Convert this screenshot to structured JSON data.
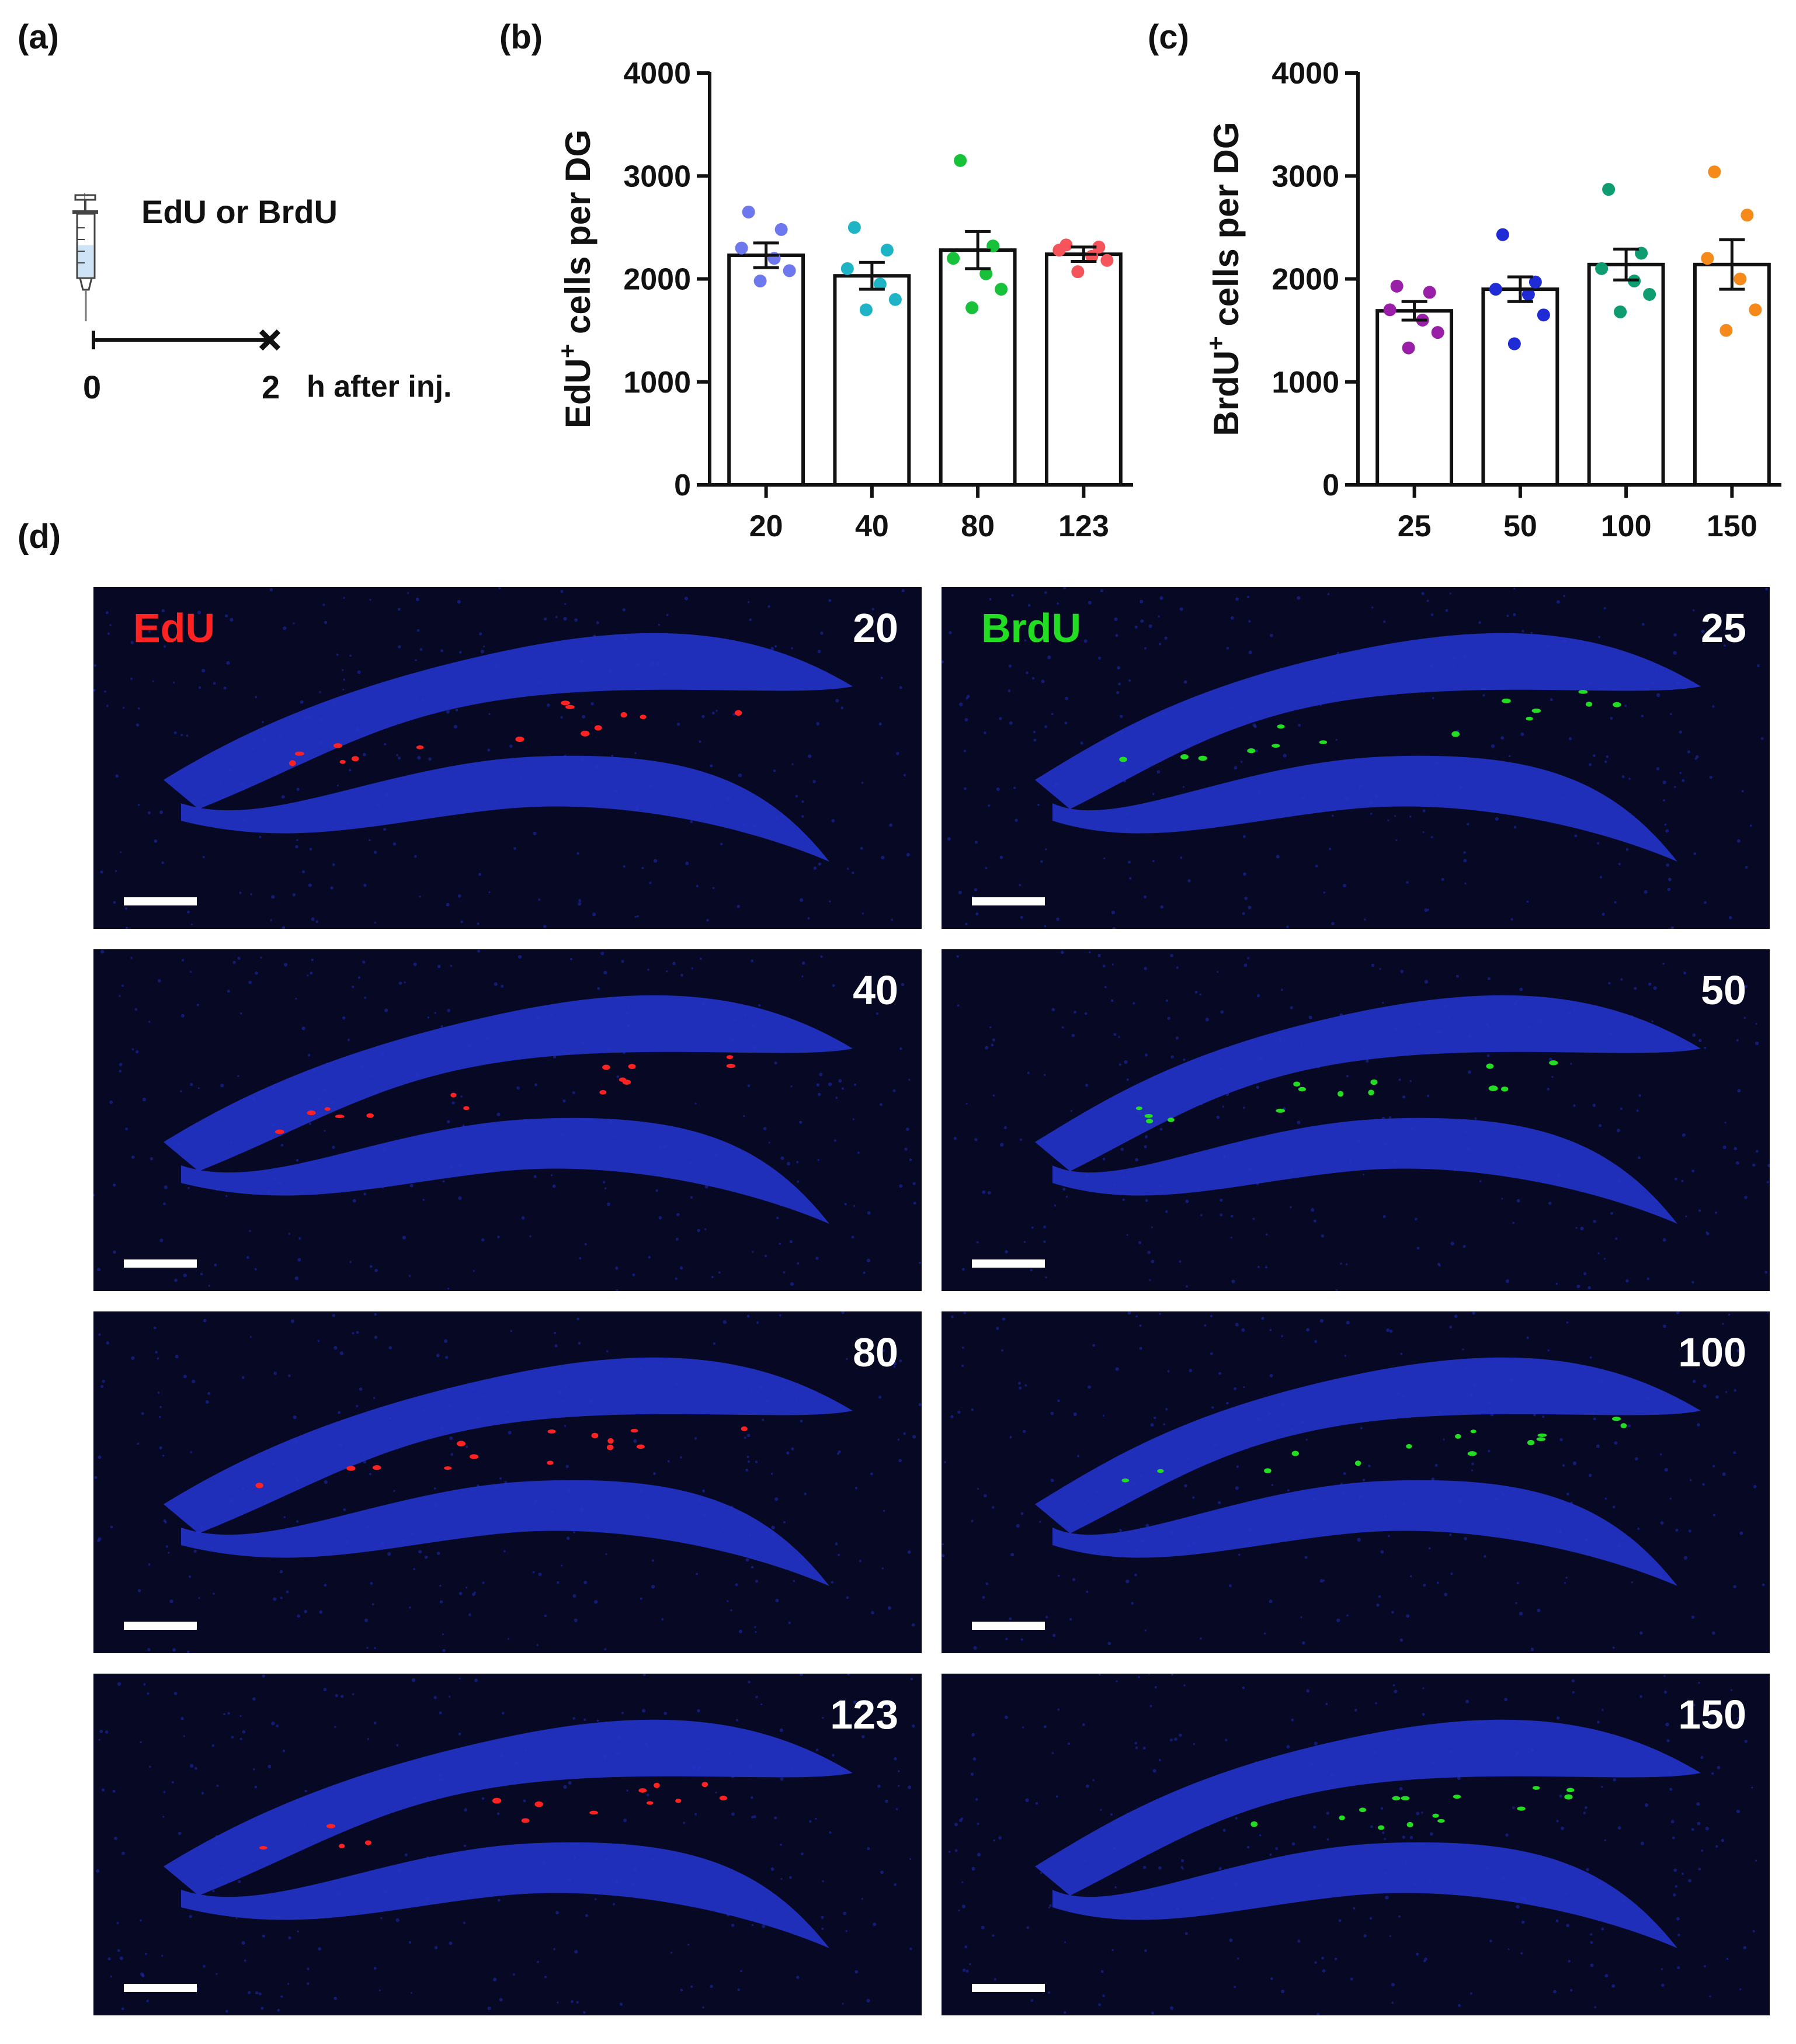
{
  "panel_labels": {
    "a": "(a)",
    "b": "(b)",
    "c": "(c)",
    "d": "(d)"
  },
  "schematic": {
    "injection_label": "EdU or BrdU",
    "time_start": "0",
    "time_end": "2",
    "time_unit": "h after inj.",
    "icons": [
      "syringe-icon",
      "cross-icon"
    ]
  },
  "chart_data": [
    {
      "type": "bar",
      "panel": "(b)",
      "categories": [
        "20",
        "40",
        "80",
        "123"
      ],
      "values": [
        2230,
        2030,
        2280,
        2240
      ],
      "sem": [
        120,
        130,
        180,
        70
      ],
      "ylabel_main": "EdU",
      "ylabel_sup": "+",
      "ylabel_rest": " cells per DG",
      "ylim": [
        0,
        4000
      ],
      "yticks": [
        "0",
        "1000",
        "2000",
        "3000",
        "4000"
      ],
      "points": [
        [
          2650,
          2480,
          2300,
          2200,
          2080,
          1980
        ],
        [
          2500,
          2280,
          2100,
          1950,
          1800,
          1700
        ],
        [
          3150,
          2320,
          2200,
          2050,
          1900,
          1720
        ],
        [
          2330,
          2310,
          2280,
          2220,
          2180,
          2070
        ]
      ],
      "point_colors": [
        "#6e78ee",
        "#1fb3c6",
        "#17c23a",
        "#f5545b"
      ]
    },
    {
      "type": "bar",
      "panel": "(c)",
      "categories": [
        "25",
        "50",
        "100",
        "150"
      ],
      "values": [
        1690,
        1900,
        2140,
        2140
      ],
      "sem": [
        90,
        120,
        150,
        240
      ],
      "ylabel_main": "BrdU",
      "ylabel_sup": "+",
      "ylabel_rest": " cells per DG",
      "ylim": [
        0,
        4000
      ],
      "yticks": [
        "0",
        "1000",
        "2000",
        "3000",
        "4000"
      ],
      "points": [
        [
          1930,
          1870,
          1700,
          1600,
          1480,
          1330
        ],
        [
          2430,
          1970,
          1900,
          1850,
          1650,
          1370
        ],
        [
          2870,
          2250,
          2100,
          1980,
          1850,
          1680
        ],
        [
          3040,
          2620,
          2200,
          2000,
          1700,
          1500
        ]
      ],
      "point_colors": [
        "#9a1fa8",
        "#1f2cd6",
        "#0f9c70",
        "#f58a1a"
      ]
    }
  ],
  "micrographs": {
    "edu_label": "EdU",
    "brdu_label": "BrdU",
    "edu_color": "#ff2222",
    "brdu_color": "#22dd22",
    "edu_doses": [
      "20",
      "40",
      "80",
      "123"
    ],
    "brdu_doses": [
      "25",
      "50",
      "100",
      "150"
    ]
  }
}
